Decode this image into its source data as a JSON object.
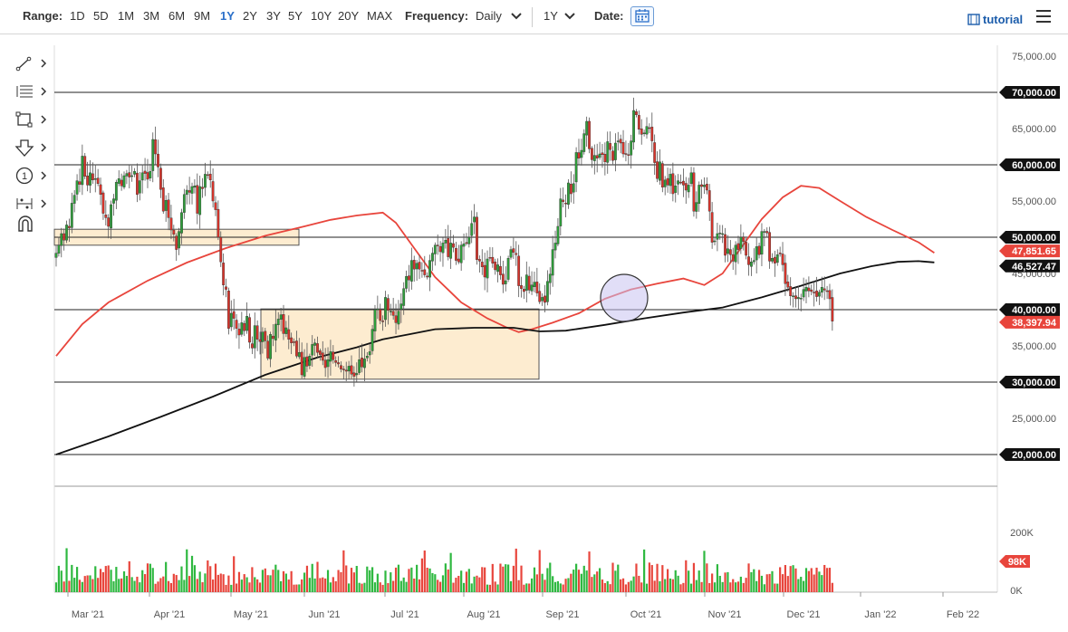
{
  "toolbar": {
    "range_label": "Range:",
    "ranges": [
      "1D",
      "5D",
      "1M",
      "3M",
      "6M",
      "9M",
      "1Y",
      "2Y",
      "3Y",
      "5Y",
      "10Y",
      "20Y",
      "MAX"
    ],
    "active_range": "1Y",
    "frequency_label": "Frequency:",
    "frequency_value": "Daily",
    "period_value": "1Y",
    "date_label": "Date:",
    "tutorial_label": "tutorial"
  },
  "tools": [
    "trendline-tool",
    "fibonacci-tool",
    "rectangle-tool",
    "arrow-tool",
    "annotation-tool",
    "measure-tool",
    "magnet-tool"
  ],
  "chart_data": {
    "type": "candlestick",
    "instrument_hint": "daily price, 1Y range",
    "x_labels": [
      "Mar '21",
      "Apr '21",
      "May '21",
      "Jun '21",
      "Jul '21",
      "Aug '21",
      "Sep '21",
      "Oct '21",
      "Nov '21",
      "Dec '21",
      "Jan '22",
      "Feb '22"
    ],
    "y_ticks": [
      "75,000.00",
      "65,000.00",
      "55,000.00",
      "45,000.00",
      "35,000.00",
      "25,000.00"
    ],
    "ylim": [
      17000,
      76500
    ],
    "horizontal_levels": [
      {
        "value": 70000,
        "label": "70,000.00"
      },
      {
        "value": 60000,
        "label": "60,000.00"
      },
      {
        "value": 50000,
        "label": "50,000.00"
      },
      {
        "value": 40000,
        "label": "40,000.00"
      },
      {
        "value": 30000,
        "label": "30,000.00"
      },
      {
        "value": 20000,
        "label": "20,000.00"
      }
    ],
    "last_price": {
      "value": 38397.94,
      "label": "38,397.94",
      "color": "#e8453c"
    },
    "ma50": {
      "value": 47851.65,
      "label": "47,851.65",
      "color": "#e8453c",
      "points": [
        [
          0,
          33600
        ],
        [
          10,
          38000
        ],
        [
          20,
          41000
        ],
        [
          35,
          44000
        ],
        [
          50,
          46500
        ],
        [
          65,
          48500
        ],
        [
          80,
          50200
        ],
        [
          95,
          51500
        ],
        [
          105,
          52400
        ],
        [
          115,
          53000
        ],
        [
          125,
          53400
        ],
        [
          130,
          52000
        ],
        [
          137,
          48500
        ],
        [
          145,
          44500
        ],
        [
          155,
          41000
        ],
        [
          165,
          38800
        ],
        [
          172,
          37600
        ],
        [
          177,
          36900
        ],
        [
          182,
          37300
        ],
        [
          190,
          38200
        ],
        [
          200,
          39500
        ],
        [
          210,
          41500
        ],
        [
          220,
          42800
        ],
        [
          230,
          43600
        ],
        [
          240,
          44300
        ],
        [
          248,
          43400
        ],
        [
          255,
          45000
        ],
        [
          262,
          48500
        ],
        [
          270,
          52500
        ],
        [
          278,
          55500
        ],
        [
          285,
          57100
        ],
        [
          292,
          56800
        ],
        [
          300,
          55000
        ],
        [
          310,
          52800
        ],
        [
          320,
          51000
        ],
        [
          330,
          49300
        ],
        [
          336,
          47851
        ]
      ]
    },
    "ma200": {
      "value": 46527.47,
      "label": "46,527.47",
      "color": "#111111",
      "points": [
        [
          0,
          20000
        ],
        [
          20,
          22500
        ],
        [
          40,
          25200
        ],
        [
          60,
          28000
        ],
        [
          80,
          31000
        ],
        [
          100,
          33400
        ],
        [
          115,
          34800
        ],
        [
          125,
          35900
        ],
        [
          135,
          36600
        ],
        [
          145,
          37300
        ],
        [
          160,
          37500
        ],
        [
          175,
          37500
        ],
        [
          185,
          37000
        ],
        [
          195,
          37100
        ],
        [
          210,
          37900
        ],
        [
          225,
          38800
        ],
        [
          240,
          39600
        ],
        [
          255,
          40300
        ],
        [
          270,
          41700
        ],
        [
          285,
          43300
        ],
        [
          300,
          45000
        ],
        [
          312,
          46000
        ],
        [
          322,
          46600
        ],
        [
          330,
          46700
        ],
        [
          336,
          46527
        ]
      ]
    },
    "candles_close": [
      47800,
      48900,
      50500,
      49600,
      51700,
      51300,
      54700,
      55800,
      57800,
      57300,
      61200,
      58400,
      57200,
      58900,
      57900,
      58100,
      57400,
      55900,
      53300,
      52700,
      51500,
      54500,
      55300,
      57600,
      58100,
      57100,
      58500,
      58800,
      58300,
      58500,
      59100,
      55900,
      57800,
      58900,
      58800,
      58000,
      59100,
      63500,
      61500,
      59700,
      56600,
      53600,
      55100,
      52700,
      51000,
      50400,
      48300,
      50800,
      53400,
      55900,
      56500,
      56200,
      57000,
      57100,
      53300,
      57000,
      56700,
      58700,
      58600,
      57900,
      55000,
      53800,
      50000,
      46600,
      43400,
      42800,
      37400,
      39500,
      38800,
      37400,
      36500,
      38200,
      37100,
      39100,
      35500,
      34700,
      37800,
      35900,
      35600,
      36900,
      35700,
      33300,
      36600,
      36000,
      38000,
      38700,
      39300,
      36700,
      37500,
      35900,
      35400,
      35500,
      33600,
      34100,
      31000,
      33400,
      32200,
      33600,
      35200,
      35400,
      34100,
      33800,
      33000,
      32000,
      33100,
      34200,
      33100,
      32700,
      32500,
      31800,
      31700,
      31500,
      32200,
      31100,
      30800,
      31200,
      33100,
      32100,
      33200,
      33600,
      34200,
      37300,
      40000,
      40100,
      38500,
      38400,
      41700,
      39900,
      39800,
      39200,
      38200,
      39800,
      40800,
      42900,
      44600,
      44100,
      46800,
      45600,
      46400,
      45600,
      45400,
      44800,
      44500,
      46800,
      47800,
      48900,
      48800,
      48000,
      49200,
      49600,
      47300,
      49200,
      48600,
      46800,
      46600,
      48900,
      49100,
      49200,
      50000,
      51900,
      52800,
      46900,
      46700,
      45900,
      44500,
      47000,
      47100,
      46400,
      45500,
      46200,
      44800,
      43500,
      44000,
      47100,
      48300,
      47900,
      47600,
      43300,
      42900,
      42500,
      44800,
      42700,
      43400,
      43800,
      42300,
      41100,
      41700,
      41000,
      43900,
      44900,
      48300,
      49200,
      51500,
      55300,
      54900,
      54700,
      57500,
      56000,
      57400,
      61700,
      60900,
      62000,
      64300,
      66000,
      62200,
      60700,
      61300,
      60900,
      61500,
      61400,
      60400,
      63200,
      62100,
      60600,
      63000,
      63300,
      63000,
      61500,
      61500,
      61300,
      63300,
      67500,
      66900,
      64900,
      64200,
      64400,
      65300,
      65000,
      63300,
      60300,
      58100,
      60400,
      56900,
      57900,
      57200,
      58700,
      56000,
      57100,
      57800,
      57600,
      57200,
      56500,
      57200,
      58900,
      53600,
      54800,
      57200,
      57000,
      57200,
      56500,
      53600,
      49300,
      49500,
      50500,
      50600,
      50500,
      47500,
      48400,
      47600,
      46700,
      48900,
      48300,
      50000,
      49400,
      47500,
      46200,
      46600,
      46800,
      48700,
      47600,
      50800,
      50800,
      50600,
      46700,
      47100,
      46400,
      47600,
      47700,
      46200,
      43600,
      43100,
      41900,
      41900,
      41500,
      41700,
      41600,
      42800,
      43100,
      42600,
      42500,
      42400,
      41800,
      42400,
      43100,
      42700,
      42600,
      41500,
      38400
    ],
    "volume_axis": [
      "200K",
      "0K"
    ],
    "volume_last": {
      "label": "98K",
      "color": "#e8453c"
    },
    "annotations": [
      "box Mar-Apr '21 near 50,000",
      "box Jun-Aug '21 between 30,000 and 40,000",
      "circle late Sep '21 near 40,000"
    ],
    "grid": false
  }
}
